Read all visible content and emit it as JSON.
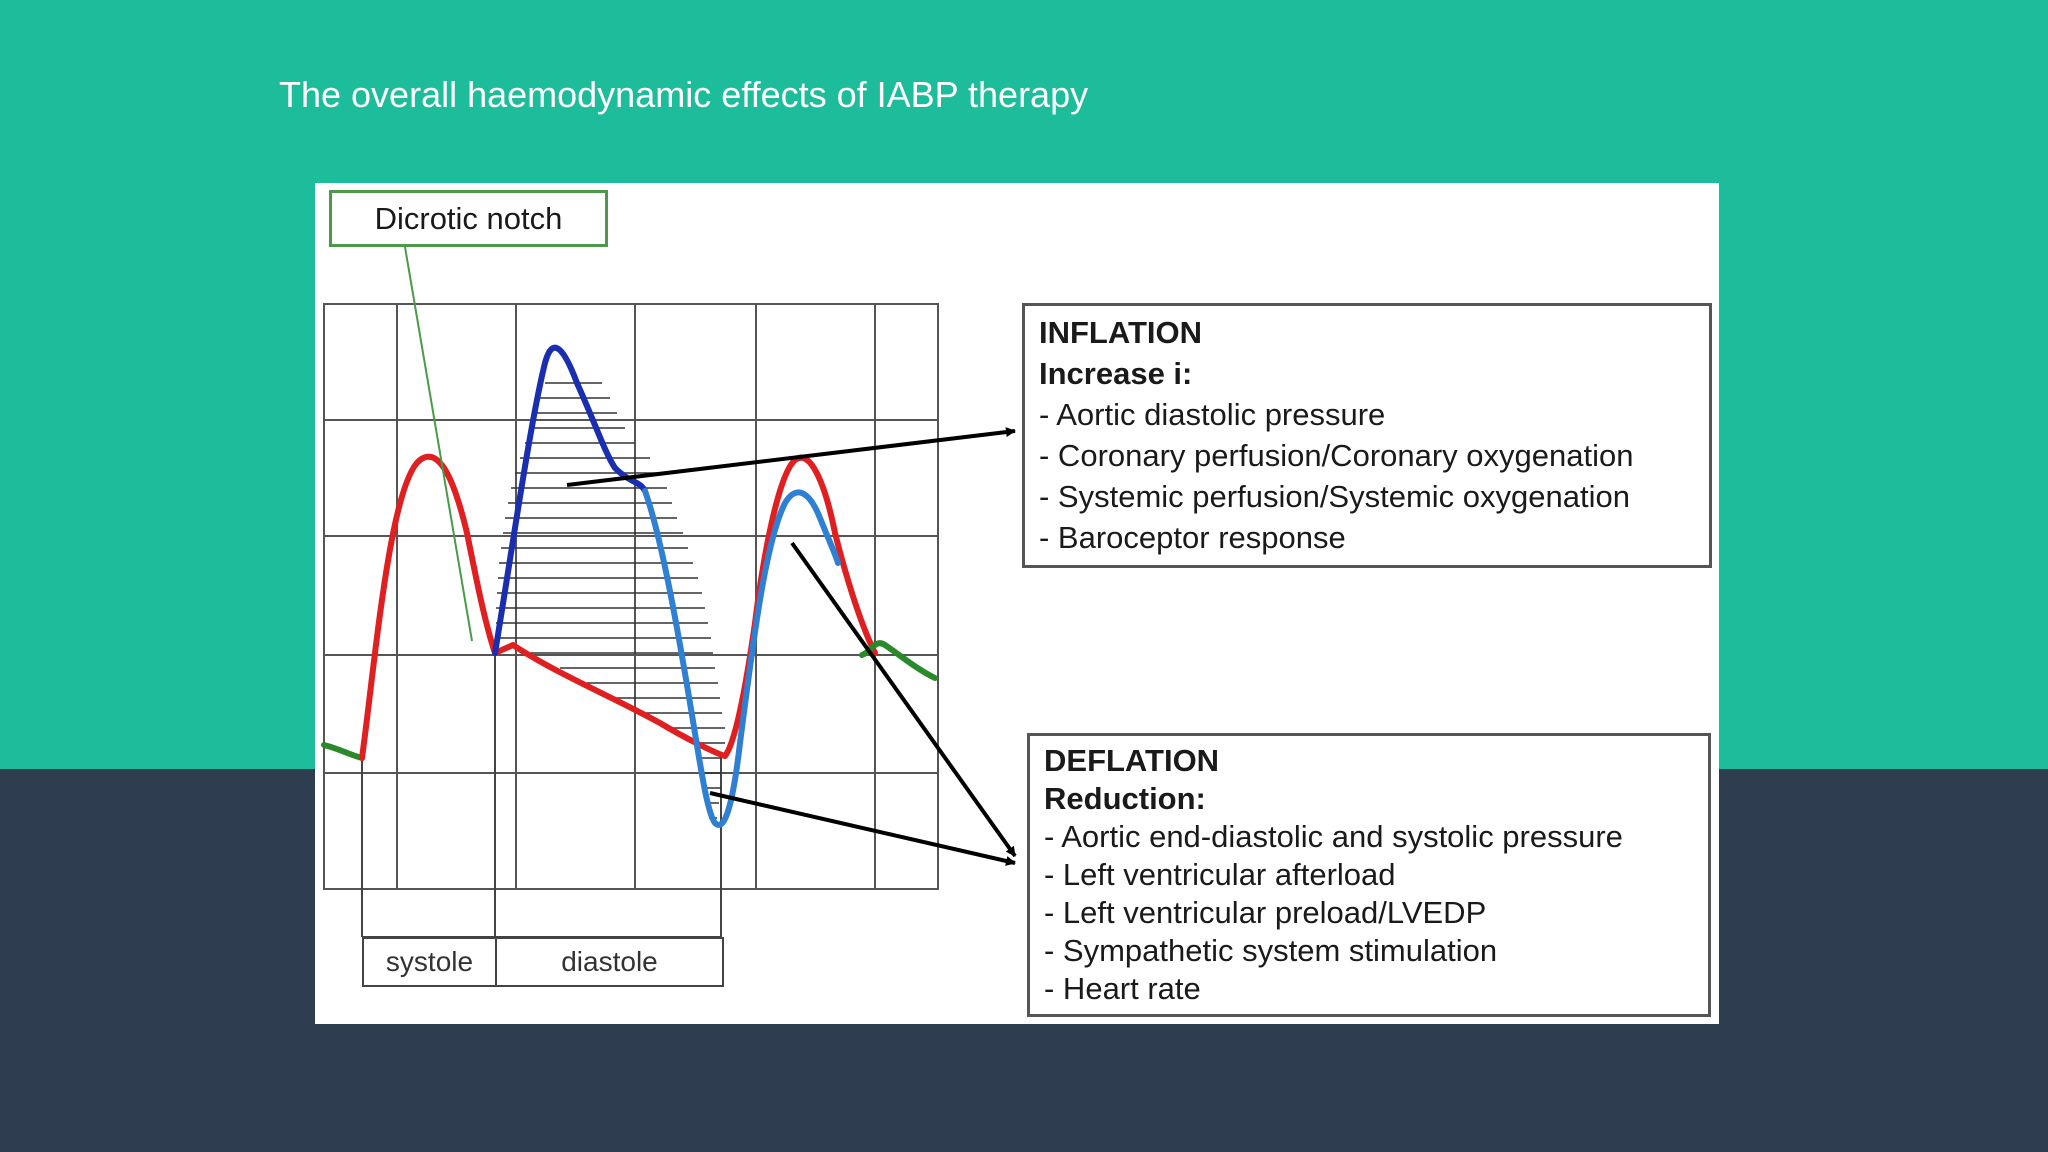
{
  "slide": {
    "title": "The overall haemodynamic effects of IABP therapy"
  },
  "colors": {
    "background_top": "#1dbd9b",
    "background_bottom": "#2e3d4f",
    "augmented_pressure": "#1a2fb0",
    "balloon_pressure": "#2f7fd3",
    "arterial_pressure": "#e02020",
    "baseline_pressure": "#2a8a2a"
  },
  "figure": {
    "dicrotic_label": "Dicrotic notch",
    "inflation": {
      "heading": "INFLATION",
      "subheading": "Increase i:",
      "items": [
        "- Aortic diastolic pressure",
        "- Coronary perfusion/Coronary oxygenation",
        "- Systemic perfusion/Systemic oxygenation",
        "- Baroceptor response"
      ]
    },
    "deflation": {
      "heading": "DEFLATION",
      "subheading": "Reduction:",
      "items": [
        "- Aortic end-diastolic and systolic pressure",
        "- Left ventricular afterload",
        "- Left ventricular preload/LVEDP",
        "- Sympathetic system stimulation",
        "- Heart rate"
      ]
    },
    "phases": {
      "systole": "systole",
      "diastole": "diastole"
    }
  }
}
